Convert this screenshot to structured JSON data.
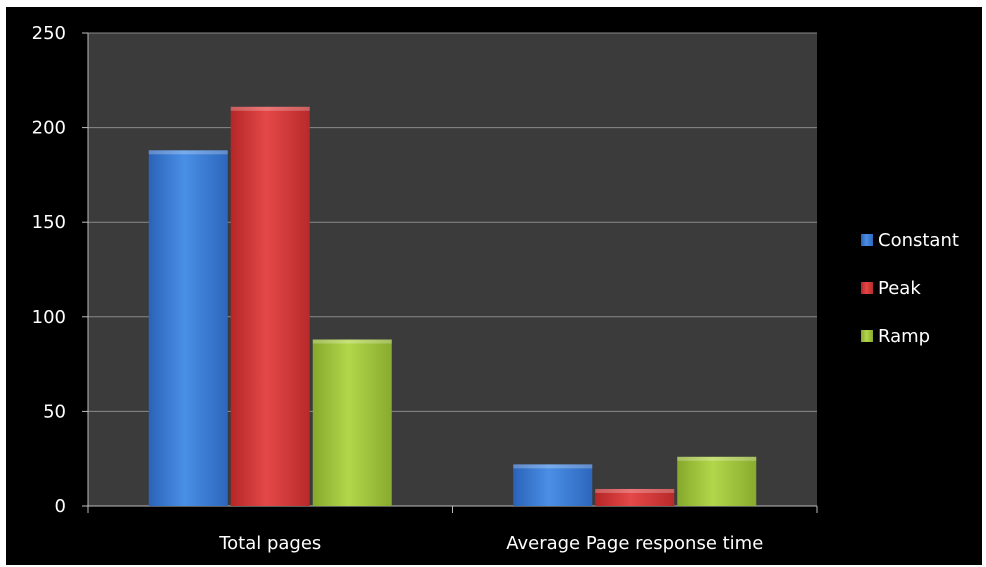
{
  "chart_data": {
    "type": "bar",
    "categories": [
      "Total pages",
      "Average Page response time"
    ],
    "series": [
      {
        "name": "Constant",
        "color": "#3f7fd6",
        "values": [
          188,
          22
        ]
      },
      {
        "name": "Peak",
        "color": "#d93a3a",
        "values": [
          211,
          9
        ]
      },
      {
        "name": "Ramp",
        "color": "#a2c83c",
        "values": [
          88,
          26
        ]
      }
    ],
    "ylim": [
      0,
      250
    ],
    "yticks": [
      0,
      50,
      100,
      150,
      200,
      250
    ],
    "grid": true,
    "legend": "right"
  }
}
